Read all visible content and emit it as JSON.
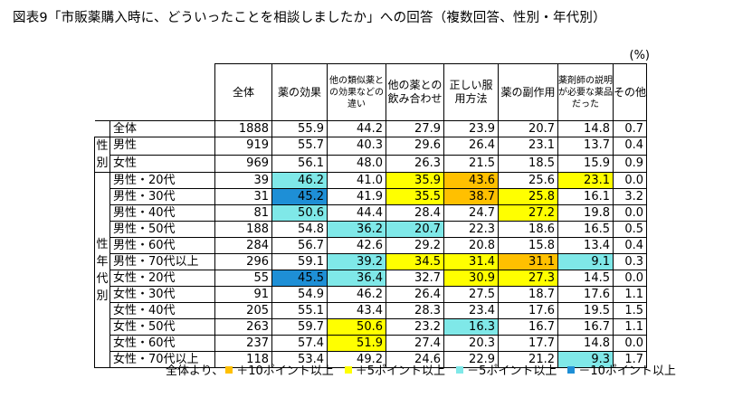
{
  "title": "図表9「市販薬購入時に、どういったことを相談しましたか」への回答（複数回答、性別・年代別）",
  "unit": "(%)",
  "columns": [
    "全体",
    "薬の効果",
    "他の類似薬との効果などの違い",
    "他の薬との飲み合わせ",
    "正しい服用方法",
    "薬の副作用",
    "薬剤師の説明が必要な薬品だった",
    "その他"
  ],
  "groups": {
    "sex": "性別",
    "sex_age": "性年代別"
  },
  "rows": [
    {
      "label": "全体",
      "values": [
        "1888",
        "55.9",
        "44.2",
        "27.9",
        "23.9",
        "20.7",
        "14.8",
        "0.7"
      ],
      "colors": [
        "",
        "",
        "",
        "",
        "",
        "",
        "",
        ""
      ]
    },
    {
      "label": "男性",
      "values": [
        "919",
        "55.7",
        "40.3",
        "29.6",
        "26.4",
        "23.1",
        "13.7",
        "0.4"
      ],
      "colors": [
        "",
        "",
        "",
        "",
        "",
        "",
        "",
        ""
      ]
    },
    {
      "label": "女性",
      "values": [
        "969",
        "56.1",
        "48.0",
        "26.3",
        "21.5",
        "18.5",
        "15.9",
        "0.9"
      ],
      "colors": [
        "",
        "",
        "",
        "",
        "",
        "",
        "",
        ""
      ]
    },
    {
      "label": "男性・20代",
      "values": [
        "39",
        "46.2",
        "41.0",
        "35.9",
        "43.6",
        "25.6",
        "23.1",
        "0.0"
      ],
      "colors": [
        "",
        "lb",
        "",
        "y",
        "o",
        "",
        "y",
        ""
      ]
    },
    {
      "label": "男性・30代",
      "values": [
        "31",
        "45.2",
        "41.9",
        "35.5",
        "38.7",
        "25.8",
        "16.1",
        "3.2"
      ],
      "colors": [
        "",
        "db",
        "",
        "y",
        "o",
        "y",
        "",
        ""
      ]
    },
    {
      "label": "男性・40代",
      "values": [
        "81",
        "50.6",
        "44.4",
        "28.4",
        "24.7",
        "27.2",
        "19.8",
        "0.0"
      ],
      "colors": [
        "",
        "lb",
        "",
        "",
        "",
        "y",
        "",
        ""
      ]
    },
    {
      "label": "男性・50代",
      "values": [
        "188",
        "54.8",
        "36.2",
        "20.7",
        "22.3",
        "18.6",
        "16.5",
        "0.5"
      ],
      "colors": [
        "",
        "",
        "lb",
        "lb",
        "",
        "",
        "",
        ""
      ]
    },
    {
      "label": "男性・60代",
      "values": [
        "284",
        "56.7",
        "42.6",
        "29.2",
        "20.8",
        "15.8",
        "13.4",
        "0.4"
      ],
      "colors": [
        "",
        "",
        "",
        "",
        "",
        "",
        "",
        ""
      ]
    },
    {
      "label": "男性・70代以上",
      "values": [
        "296",
        "59.1",
        "39.2",
        "34.5",
        "31.4",
        "31.1",
        "9.1",
        "0.3"
      ],
      "colors": [
        "",
        "",
        "lb",
        "y",
        "y",
        "o",
        "lb",
        ""
      ]
    },
    {
      "label": "女性・20代",
      "values": [
        "55",
        "45.5",
        "36.4",
        "32.7",
        "30.9",
        "27.3",
        "14.5",
        "0.0"
      ],
      "colors": [
        "",
        "db",
        "lb",
        "",
        "y",
        "y",
        "",
        ""
      ]
    },
    {
      "label": "女性・30代",
      "values": [
        "91",
        "54.9",
        "46.2",
        "26.4",
        "27.5",
        "18.7",
        "17.6",
        "1.1"
      ],
      "colors": [
        "",
        "",
        "",
        "",
        "",
        "",
        "",
        ""
      ]
    },
    {
      "label": "女性・40代",
      "values": [
        "205",
        "55.1",
        "43.4",
        "28.3",
        "23.4",
        "17.6",
        "19.5",
        "1.5"
      ],
      "colors": [
        "",
        "",
        "",
        "",
        "",
        "",
        "",
        ""
      ]
    },
    {
      "label": "女性・50代",
      "values": [
        "263",
        "59.7",
        "50.6",
        "23.2",
        "16.3",
        "16.7",
        "16.7",
        "1.1"
      ],
      "colors": [
        "",
        "",
        "y",
        "",
        "lb",
        "",
        "",
        ""
      ]
    },
    {
      "label": "女性・60代",
      "values": [
        "237",
        "57.4",
        "51.9",
        "27.4",
        "20.3",
        "17.7",
        "14.8",
        "0.0"
      ],
      "colors": [
        "",
        "",
        "y",
        "",
        "",
        "",
        "",
        ""
      ]
    },
    {
      "label": "女性・70代以上",
      "values": [
        "118",
        "53.4",
        "49.2",
        "24.6",
        "22.9",
        "21.2",
        "9.3",
        "1.7"
      ],
      "colors": [
        "",
        "",
        "",
        "",
        "",
        "",
        "lb",
        ""
      ]
    }
  ],
  "legend": {
    "prefix": "全体より、",
    "items": [
      {
        "key": "o",
        "label": "＋10ポイント以上",
        "color": "#ffc000"
      },
      {
        "key": "y",
        "label": "＋5ポイント以上",
        "color": "#ffff00"
      },
      {
        "key": "lb",
        "label": "－5ポイント以上",
        "color": "#7fe8e8"
      },
      {
        "key": "db",
        "label": "－10ポイント以上",
        "color": "#1e8fd6"
      }
    ]
  }
}
